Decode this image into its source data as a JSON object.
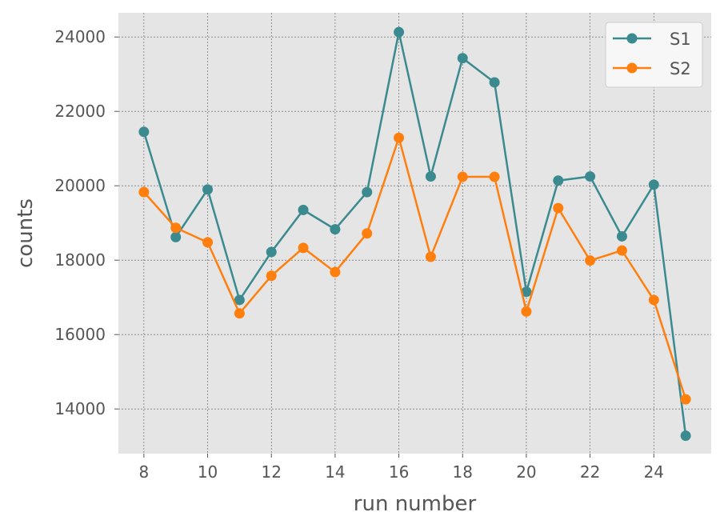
{
  "chart_data": {
    "type": "line",
    "title": "",
    "xlabel": "run number",
    "ylabel": "counts",
    "x": [
      8,
      9,
      10,
      11,
      12,
      13,
      14,
      15,
      16,
      17,
      18,
      19,
      20,
      21,
      22,
      23,
      24,
      25
    ],
    "series": [
      {
        "name": "S1",
        "color": "#3a8a8f",
        "values": [
          21450,
          18620,
          19900,
          16930,
          18220,
          19350,
          18830,
          19830,
          24130,
          20250,
          23430,
          22780,
          17150,
          20140,
          20250,
          18640,
          20030,
          13280
        ]
      },
      {
        "name": "S2",
        "color": "#ff7f0e",
        "values": [
          19830,
          18870,
          18480,
          16570,
          17580,
          18330,
          17680,
          18720,
          21290,
          18090,
          20240,
          20240,
          16620,
          19400,
          17990,
          18260,
          16930,
          14260
        ]
      }
    ],
    "xlim": [
      7.2,
      25.8
    ],
    "ylim": [
      12800,
      24650
    ],
    "xticks": [
      "8",
      "10",
      "12",
      "14",
      "16",
      "18",
      "20",
      "22",
      "24"
    ],
    "yticks": [
      "14000",
      "16000",
      "18000",
      "20000",
      "22000",
      "24000"
    ],
    "grid": true,
    "legend_position": "top-right",
    "marker": "circle"
  }
}
